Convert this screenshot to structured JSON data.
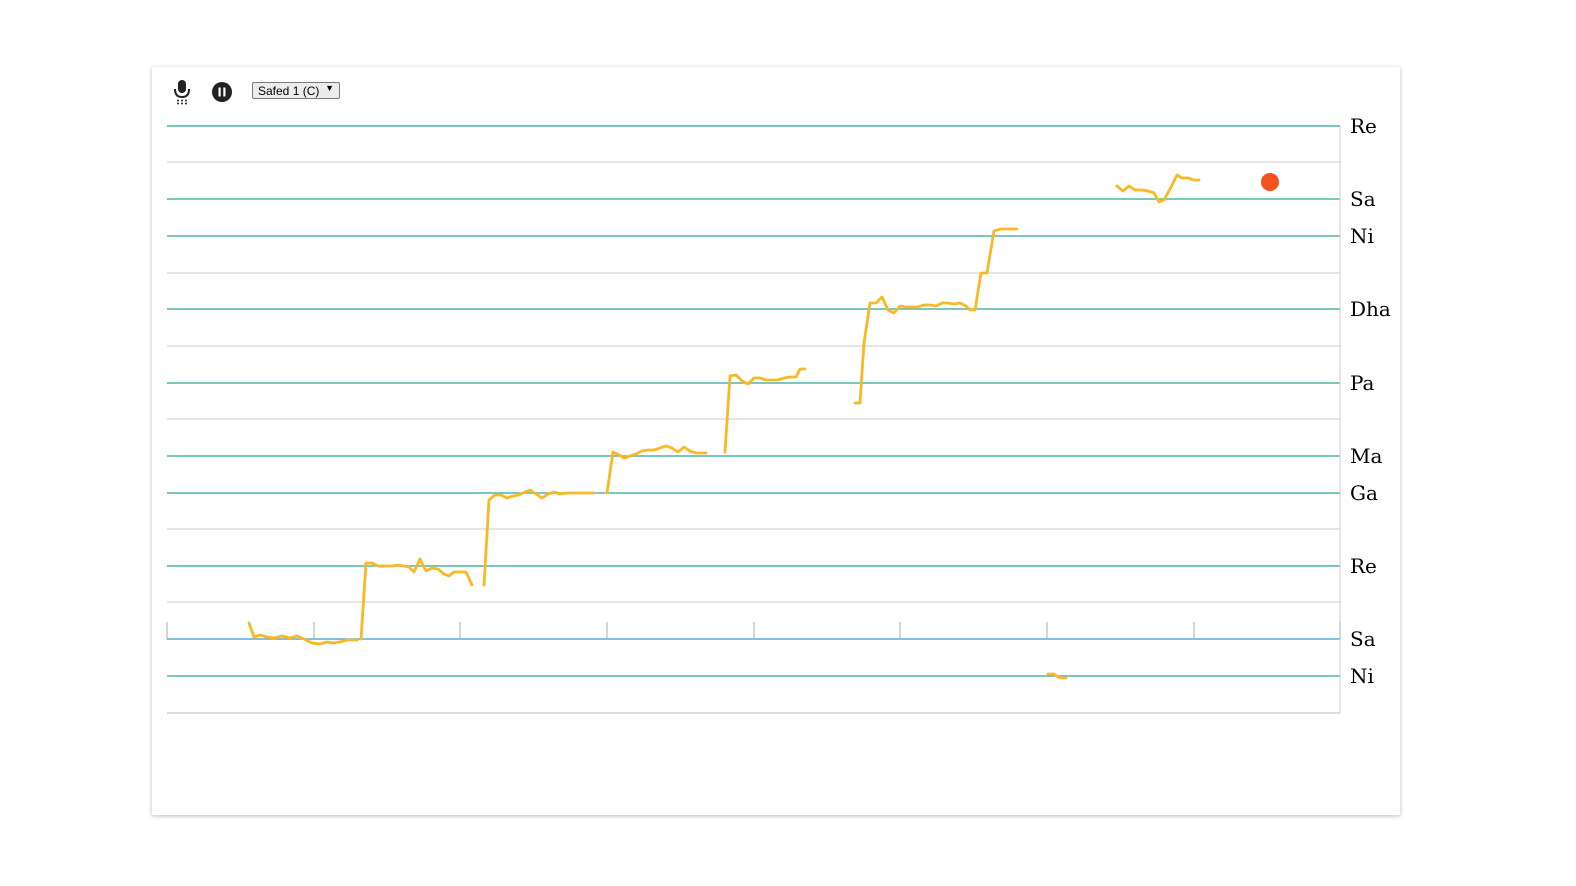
{
  "toolbar": {
    "mic_icon": "microphone-icon",
    "pause_icon": "pause-icon",
    "tonic_select": {
      "value": "Safed 1 (C)"
    }
  },
  "chart_data": {
    "type": "line",
    "y_axis_labels": [
      "Re",
      "Sa",
      "Ni",
      "Dha",
      "Pa",
      "Ma",
      "Ga",
      "Re",
      "Sa",
      "Ni"
    ],
    "colors": {
      "swara_line": "#4db6ac",
      "minor_line": "#cccccc",
      "pitch_trace": "#f9b825",
      "current_pitch": "#f4511e",
      "tonic_line": "#5aaad6"
    }
  }
}
